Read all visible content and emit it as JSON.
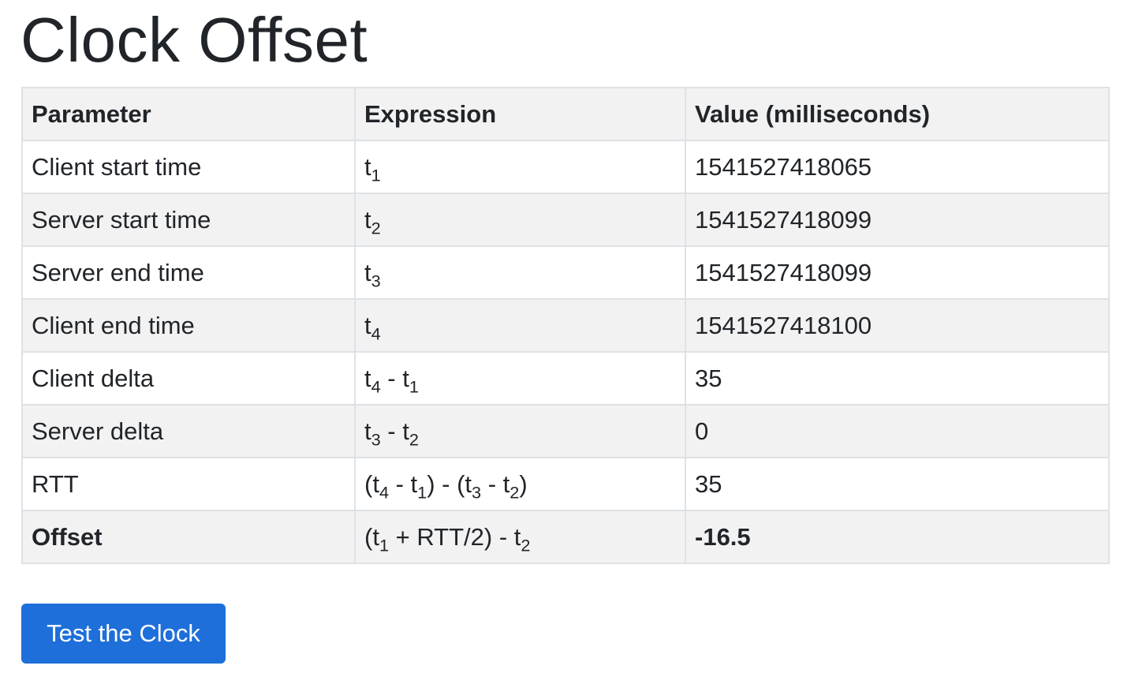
{
  "page": {
    "title": "Clock Offset"
  },
  "table": {
    "headers": [
      "Parameter",
      "Expression",
      "Value (milliseconds)"
    ],
    "rows": [
      {
        "parameter": "Client start time",
        "expression": [
          [
            "t",
            "1"
          ]
        ],
        "value": "1541527418065"
      },
      {
        "parameter": "Server start time",
        "expression": [
          [
            "t",
            "2"
          ]
        ],
        "value": "1541527418099"
      },
      {
        "parameter": "Server end time",
        "expression": [
          [
            "t",
            "3"
          ]
        ],
        "value": "1541527418099"
      },
      {
        "parameter": "Client end time",
        "expression": [
          [
            "t",
            "4"
          ]
        ],
        "value": "1541527418100"
      },
      {
        "parameter": "Client delta",
        "expression": [
          [
            "t",
            "4"
          ],
          [
            " - t",
            "1"
          ]
        ],
        "value": "35"
      },
      {
        "parameter": "Server delta",
        "expression": [
          [
            "t",
            "3"
          ],
          [
            " - t",
            "2"
          ]
        ],
        "value": "0"
      },
      {
        "parameter": "RTT",
        "expression": [
          [
            "(t",
            "4"
          ],
          [
            " - t",
            "1"
          ],
          [
            ") - (t",
            "3"
          ],
          [
            " - t",
            "2"
          ],
          [
            ")",
            ""
          ]
        ],
        "value": "35"
      },
      {
        "parameter": "Offset",
        "expression": [
          [
            "(t",
            "1"
          ],
          [
            " + RTT/2) - t",
            "2"
          ]
        ],
        "value": "-16.5",
        "bold": true
      }
    ]
  },
  "actions": {
    "test_button_label": "Test the Clock"
  }
}
